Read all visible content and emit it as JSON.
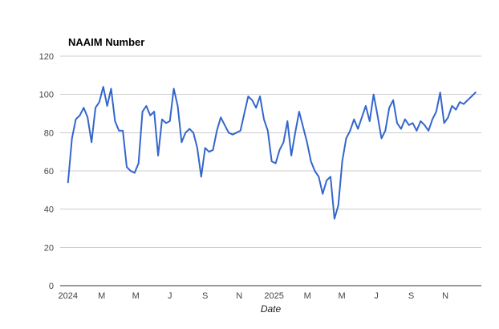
{
  "chart_data": {
    "type": "line",
    "title": "NAAIM Number",
    "xlabel": "Date",
    "ylabel": "",
    "ylim": [
      0,
      120
    ],
    "yticks": [
      0,
      20,
      40,
      60,
      80,
      100,
      120
    ],
    "xlim": [
      -2,
      105.5
    ],
    "x_unit": "week_index",
    "xticks": [
      {
        "label": "2024",
        "week": 0
      },
      {
        "label": "M",
        "week": 8.6
      },
      {
        "label": "M",
        "week": 17.3
      },
      {
        "label": "J",
        "week": 26
      },
      {
        "label": "S",
        "week": 35
      },
      {
        "label": "N",
        "week": 43.7
      },
      {
        "label": "2025",
        "week": 52.6
      },
      {
        "label": "M",
        "week": 61.1
      },
      {
        "label": "M",
        "week": 69.9
      },
      {
        "label": "J",
        "week": 78.7
      },
      {
        "label": "S",
        "week": 87.6
      },
      {
        "label": "N",
        "week": 96.3
      }
    ],
    "grid": "horizontal",
    "legend": "none",
    "colors": {
      "line": "#3366cc",
      "grid": "#cccccc",
      "baseline": "#333333",
      "tick_text": "#444444",
      "title_text": "#000000",
      "background": "#ffffff"
    },
    "series": [
      {
        "name": "NAAIM Number",
        "color": "#3366cc",
        "values": [
          54,
          77,
          87,
          89,
          93,
          88,
          75,
          93,
          96,
          104,
          94,
          103,
          86,
          81,
          81,
          62,
          60,
          59,
          64,
          91,
          94,
          89,
          91,
          68,
          87,
          85,
          86,
          103,
          94,
          75,
          80,
          82,
          80,
          72,
          57,
          72,
          70,
          71,
          81,
          88,
          84,
          80,
          79,
          80,
          81,
          90,
          99,
          97,
          93,
          99,
          87,
          81,
          65,
          64,
          71,
          75,
          86,
          68,
          80,
          91,
          83,
          75,
          65,
          60,
          57,
          48,
          55,
          57,
          35,
          42,
          65,
          77,
          81,
          87,
          82,
          88,
          94,
          86,
          100,
          89,
          77,
          81,
          93,
          97,
          85,
          82,
          87,
          84,
          85,
          81,
          86,
          84,
          81,
          87,
          91,
          101,
          85,
          88,
          94,
          92,
          96,
          95,
          97,
          99,
          101
        ]
      }
    ]
  }
}
